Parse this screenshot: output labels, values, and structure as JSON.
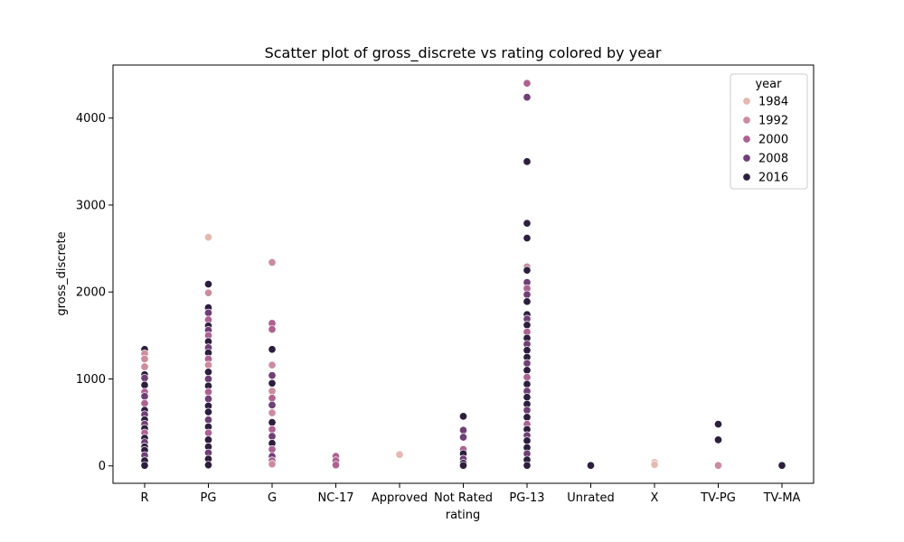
{
  "chart_data": {
    "type": "scatter",
    "title": "Scatter plot of gross_discrete vs rating colored by year",
    "xlabel": "rating",
    "ylabel": "gross_discrete",
    "categories": [
      "R",
      "PG",
      "G",
      "NC-17",
      "Approved",
      "Not Rated",
      "PG-13",
      "Unrated",
      "X",
      "TV-PG",
      "TV-MA"
    ],
    "ylim": [
      -200,
      4610
    ],
    "yticks": [
      0,
      1000,
      2000,
      3000,
      4000
    ],
    "grid": false,
    "legend": {
      "title": "year",
      "placement": "top-right",
      "entries": [
        {
          "label": "1984",
          "color": "#e6b8b0"
        },
        {
          "label": "1992",
          "color": "#cc8c9e"
        },
        {
          "label": "2000",
          "color": "#ad6291"
        },
        {
          "label": "2008",
          "color": "#6f3f76"
        },
        {
          "label": "2016",
          "color": "#2d1e3e"
        }
      ]
    },
    "points": [
      {
        "x": "R",
        "y": 1340,
        "year": 2016
      },
      {
        "x": "R",
        "y": 1290,
        "year": 1992
      },
      {
        "x": "R",
        "y": 1230,
        "year": 1992
      },
      {
        "x": "R",
        "y": 1140,
        "year": 1992
      },
      {
        "x": "R",
        "y": 1050,
        "year": 2016
      },
      {
        "x": "R",
        "y": 1010,
        "year": 2008
      },
      {
        "x": "R",
        "y": 930,
        "year": 2016
      },
      {
        "x": "R",
        "y": 850,
        "year": 2000
      },
      {
        "x": "R",
        "y": 800,
        "year": 2008
      },
      {
        "x": "R",
        "y": 720,
        "year": 2000
      },
      {
        "x": "R",
        "y": 640,
        "year": 2016
      },
      {
        "x": "R",
        "y": 590,
        "year": 2008
      },
      {
        "x": "R",
        "y": 530,
        "year": 2016
      },
      {
        "x": "R",
        "y": 480,
        "year": 2008
      },
      {
        "x": "R",
        "y": 430,
        "year": 2016
      },
      {
        "x": "R",
        "y": 380,
        "year": 2000
      },
      {
        "x": "R",
        "y": 320,
        "year": 2016
      },
      {
        "x": "R",
        "y": 270,
        "year": 2008
      },
      {
        "x": "R",
        "y": 220,
        "year": 2016
      },
      {
        "x": "R",
        "y": 180,
        "year": 2016
      },
      {
        "x": "R",
        "y": 120,
        "year": 2008
      },
      {
        "x": "R",
        "y": 60,
        "year": 2016
      },
      {
        "x": "R",
        "y": 5,
        "year": 2016
      },
      {
        "x": "PG",
        "y": 2630,
        "year": 1984
      },
      {
        "x": "PG",
        "y": 2090,
        "year": 2016
      },
      {
        "x": "PG",
        "y": 1990,
        "year": 1992
      },
      {
        "x": "PG",
        "y": 1820,
        "year": 2016
      },
      {
        "x": "PG",
        "y": 1760,
        "year": 2008
      },
      {
        "x": "PG",
        "y": 1680,
        "year": 2000
      },
      {
        "x": "PG",
        "y": 1610,
        "year": 2016
      },
      {
        "x": "PG",
        "y": 1560,
        "year": 2008
      },
      {
        "x": "PG",
        "y": 1500,
        "year": 2000
      },
      {
        "x": "PG",
        "y": 1430,
        "year": 2016
      },
      {
        "x": "PG",
        "y": 1360,
        "year": 2008
      },
      {
        "x": "PG",
        "y": 1300,
        "year": 2016
      },
      {
        "x": "PG",
        "y": 1230,
        "year": 2000
      },
      {
        "x": "PG",
        "y": 1160,
        "year": 1992
      },
      {
        "x": "PG",
        "y": 1080,
        "year": 2016
      },
      {
        "x": "PG",
        "y": 1000,
        "year": 2008
      },
      {
        "x": "PG",
        "y": 920,
        "year": 2016
      },
      {
        "x": "PG",
        "y": 850,
        "year": 2000
      },
      {
        "x": "PG",
        "y": 770,
        "year": 2008
      },
      {
        "x": "PG",
        "y": 690,
        "year": 2016
      },
      {
        "x": "PG",
        "y": 620,
        "year": 2016
      },
      {
        "x": "PG",
        "y": 530,
        "year": 2008
      },
      {
        "x": "PG",
        "y": 450,
        "year": 2016
      },
      {
        "x": "PG",
        "y": 380,
        "year": 2000
      },
      {
        "x": "PG",
        "y": 300,
        "year": 2016
      },
      {
        "x": "PG",
        "y": 220,
        "year": 2016
      },
      {
        "x": "PG",
        "y": 150,
        "year": 2008
      },
      {
        "x": "PG",
        "y": 80,
        "year": 2016
      },
      {
        "x": "PG",
        "y": 10,
        "year": 2016
      },
      {
        "x": "G",
        "y": 2340,
        "year": 1992
      },
      {
        "x": "G",
        "y": 1640,
        "year": 2000
      },
      {
        "x": "G",
        "y": 1570,
        "year": 2000
      },
      {
        "x": "G",
        "y": 1340,
        "year": 2016
      },
      {
        "x": "G",
        "y": 1160,
        "year": 1992
      },
      {
        "x": "G",
        "y": 1040,
        "year": 2008
      },
      {
        "x": "G",
        "y": 950,
        "year": 2016
      },
      {
        "x": "G",
        "y": 860,
        "year": 1992
      },
      {
        "x": "G",
        "y": 780,
        "year": 2000
      },
      {
        "x": "G",
        "y": 700,
        "year": 2008
      },
      {
        "x": "G",
        "y": 610,
        "year": 1992
      },
      {
        "x": "G",
        "y": 500,
        "year": 2016
      },
      {
        "x": "G",
        "y": 420,
        "year": 2000
      },
      {
        "x": "G",
        "y": 340,
        "year": 2008
      },
      {
        "x": "G",
        "y": 260,
        "year": 2016
      },
      {
        "x": "G",
        "y": 190,
        "year": 2000
      },
      {
        "x": "G",
        "y": 110,
        "year": 2008
      },
      {
        "x": "G",
        "y": 60,
        "year": 2000
      },
      {
        "x": "G",
        "y": 20,
        "year": 1992
      },
      {
        "x": "NC-17",
        "y": 110,
        "year": 2000
      },
      {
        "x": "NC-17",
        "y": 60,
        "year": 2000
      },
      {
        "x": "NC-17",
        "y": 10,
        "year": 2000
      },
      {
        "x": "Approved",
        "y": 130,
        "year": 1984
      },
      {
        "x": "Not Rated",
        "y": 570,
        "year": 2016
      },
      {
        "x": "Not Rated",
        "y": 410,
        "year": 2008
      },
      {
        "x": "Not Rated",
        "y": 330,
        "year": 2008
      },
      {
        "x": "Not Rated",
        "y": 190,
        "year": 2000
      },
      {
        "x": "Not Rated",
        "y": 140,
        "year": 2016
      },
      {
        "x": "Not Rated",
        "y": 80,
        "year": 2008
      },
      {
        "x": "Not Rated",
        "y": 30,
        "year": 2016
      },
      {
        "x": "Not Rated",
        "y": 5,
        "year": 2016
      },
      {
        "x": "PG-13",
        "y": 4400,
        "year": 2000
      },
      {
        "x": "PG-13",
        "y": 4240,
        "year": 2008
      },
      {
        "x": "PG-13",
        "y": 3500,
        "year": 2016
      },
      {
        "x": "PG-13",
        "y": 2790,
        "year": 2016
      },
      {
        "x": "PG-13",
        "y": 2620,
        "year": 2016
      },
      {
        "x": "PG-13",
        "y": 2290,
        "year": 1992
      },
      {
        "x": "PG-13",
        "y": 2250,
        "year": 2016
      },
      {
        "x": "PG-13",
        "y": 2110,
        "year": 2008
      },
      {
        "x": "PG-13",
        "y": 2040,
        "year": 2000
      },
      {
        "x": "PG-13",
        "y": 1970,
        "year": 2008
      },
      {
        "x": "PG-13",
        "y": 1890,
        "year": 2016
      },
      {
        "x": "PG-13",
        "y": 1740,
        "year": 2016
      },
      {
        "x": "PG-13",
        "y": 1690,
        "year": 2008
      },
      {
        "x": "PG-13",
        "y": 1620,
        "year": 2016
      },
      {
        "x": "PG-13",
        "y": 1540,
        "year": 2000
      },
      {
        "x": "PG-13",
        "y": 1470,
        "year": 2016
      },
      {
        "x": "PG-13",
        "y": 1400,
        "year": 2008
      },
      {
        "x": "PG-13",
        "y": 1330,
        "year": 2016
      },
      {
        "x": "PG-13",
        "y": 1250,
        "year": 2016
      },
      {
        "x": "PG-13",
        "y": 1180,
        "year": 2008
      },
      {
        "x": "PG-13",
        "y": 1100,
        "year": 2016
      },
      {
        "x": "PG-13",
        "y": 1020,
        "year": 2000
      },
      {
        "x": "PG-13",
        "y": 940,
        "year": 2016
      },
      {
        "x": "PG-13",
        "y": 860,
        "year": 2008
      },
      {
        "x": "PG-13",
        "y": 790,
        "year": 2016
      },
      {
        "x": "PG-13",
        "y": 710,
        "year": 2016
      },
      {
        "x": "PG-13",
        "y": 640,
        "year": 2008
      },
      {
        "x": "PG-13",
        "y": 560,
        "year": 2016
      },
      {
        "x": "PG-13",
        "y": 480,
        "year": 2000
      },
      {
        "x": "PG-13",
        "y": 420,
        "year": 2016
      },
      {
        "x": "PG-13",
        "y": 350,
        "year": 2008
      },
      {
        "x": "PG-13",
        "y": 290,
        "year": 2016
      },
      {
        "x": "PG-13",
        "y": 210,
        "year": 2016
      },
      {
        "x": "PG-13",
        "y": 140,
        "year": 2008
      },
      {
        "x": "PG-13",
        "y": 70,
        "year": 2016
      },
      {
        "x": "PG-13",
        "y": 5,
        "year": 2016
      },
      {
        "x": "Unrated",
        "y": 5,
        "year": 2016
      },
      {
        "x": "X",
        "y": 40,
        "year": 1984
      },
      {
        "x": "X",
        "y": 15,
        "year": 1984
      },
      {
        "x": "TV-PG",
        "y": 480,
        "year": 2016
      },
      {
        "x": "TV-PG",
        "y": 300,
        "year": 2016
      },
      {
        "x": "TV-PG",
        "y": 5,
        "year": 1992
      },
      {
        "x": "TV-MA",
        "y": 5,
        "year": 2016
      }
    ]
  }
}
